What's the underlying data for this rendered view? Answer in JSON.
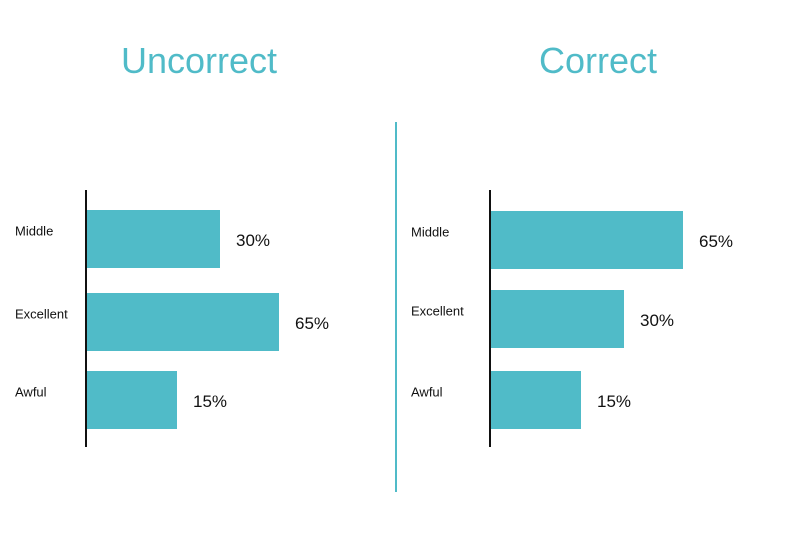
{
  "colors": {
    "accent": "#50bbc8",
    "axis": "#111111"
  },
  "chart_data": [
    {
      "type": "bar",
      "orientation": "horizontal",
      "title": "Uncorrect",
      "categories": [
        "Middle",
        "Excellent",
        "Awful"
      ],
      "values": [
        30,
        65,
        15
      ],
      "data_labels": [
        "30%",
        "65%",
        "15%"
      ],
      "grid": false
    },
    {
      "type": "bar",
      "orientation": "horizontal",
      "title": "Correct",
      "categories": [
        "Middle",
        "Excellent",
        "Awful"
      ],
      "values": [
        65,
        30,
        15
      ],
      "data_labels": [
        "65%",
        "30%",
        "15%"
      ],
      "grid": false
    }
  ]
}
